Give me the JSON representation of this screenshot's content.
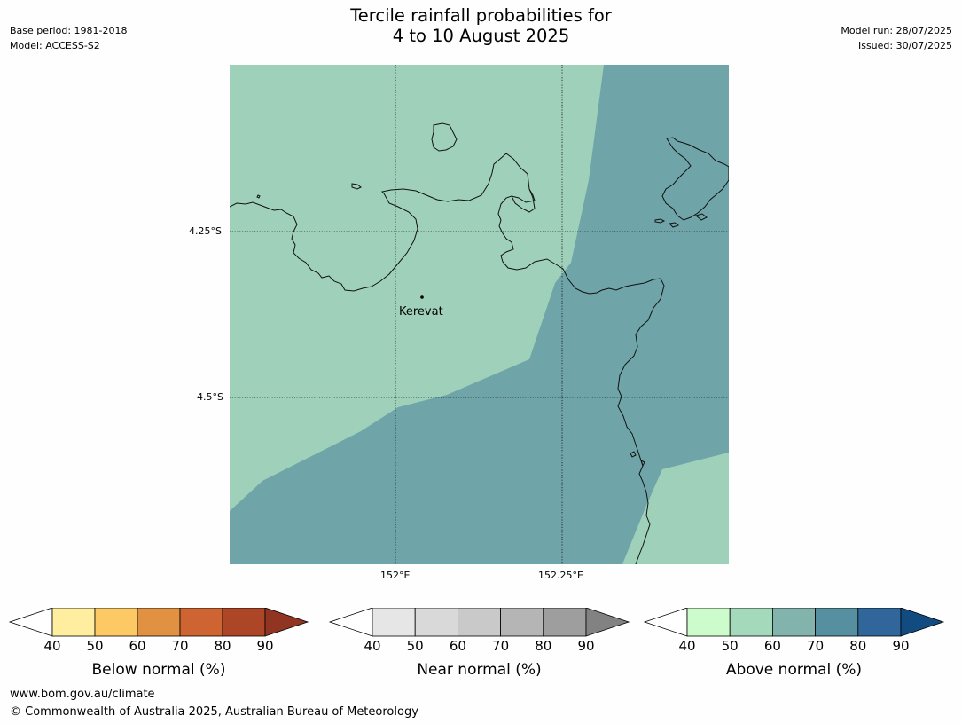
{
  "header": {
    "title_line1": "Tercile rainfall probabilities for",
    "title_line2": "4 to 10 August 2025",
    "base_period": "Base period: 1981-2018",
    "model": "Model: ACCESS-S2",
    "model_run": "Model run: 28/07/2025",
    "issued": "Issued: 30/07/2025"
  },
  "map": {
    "lat_labels": [
      "4.25°S",
      "4.5°S"
    ],
    "lon_labels": [
      "152°E",
      "152.25°E"
    ],
    "place": "Kerevat",
    "colors": {
      "near_50_60": "#9fd0ba",
      "above_70_80": "#6fa4a8",
      "coastline": "#111111"
    }
  },
  "colorbars": [
    {
      "label": "Below normal (%)",
      "ticks": [
        "40",
        "50",
        "60",
        "70",
        "80",
        "90"
      ],
      "colors": [
        "#ffeea0",
        "#fdc965",
        "#e09142",
        "#cd6431",
        "#ad4626",
        "#913522"
      ]
    },
    {
      "label": "Near normal (%)",
      "ticks": [
        "40",
        "50",
        "60",
        "70",
        "80",
        "90"
      ],
      "colors": [
        "#e6e6e6",
        "#d9d9d9",
        "#c9c9c9",
        "#b5b5b5",
        "#9e9e9e",
        "#828282"
      ]
    },
    {
      "label": "Above normal (%)",
      "ticks": [
        "40",
        "50",
        "60",
        "70",
        "80",
        "90"
      ],
      "colors": [
        "#ccfccc",
        "#a4d9bb",
        "#82b3ad",
        "#5690a0",
        "#306699",
        "#124b80"
      ]
    }
  ],
  "footer": {
    "url": "www.bom.gov.au/climate",
    "copyright": "© Commonwealth of Australia 2025, Australian Bureau of Meteorology"
  }
}
